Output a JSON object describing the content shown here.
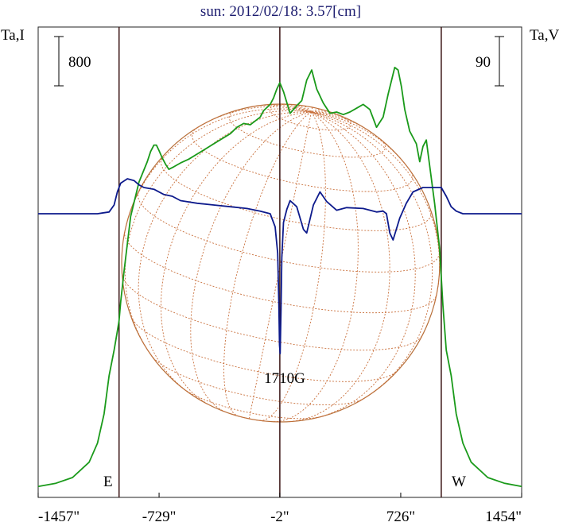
{
  "chart_data": {
    "type": "line",
    "title": "sun: 2012/02/18: 3.57[cm]",
    "left_axis_label": "Ta,I",
    "right_axis_label": "Ta,V",
    "left_scale_bar": "800",
    "right_scale_bar": "90",
    "annotation_peak": "1710G",
    "limb_label_east": "E",
    "limb_label_west": "W",
    "x_ticks": [
      {
        "value": -1457,
        "label": "-1457\""
      },
      {
        "value": -729,
        "label": "-729\""
      },
      {
        "value": -2,
        "label": "-2\""
      },
      {
        "value": 726,
        "label": "726\""
      },
      {
        "value": 1454,
        "label": "1454\""
      }
    ],
    "xlim": [
      -1457,
      1454
    ],
    "vertical_markers": [
      -970,
      -2,
      970
    ],
    "solar_disk": {
      "radius_arcsec": 970,
      "grid": true
    },
    "series": [
      {
        "key": "I",
        "color": "#1a9a1a",
        "x": [
          -1457,
          -1350,
          -1250,
          -1150,
          -1100,
          -1060,
          -1030,
          -1000,
          -980,
          -970,
          -960,
          -940,
          -900,
          -850,
          -800,
          -780,
          -760,
          -745,
          -730,
          -710,
          -690,
          -670,
          -640,
          -600,
          -550,
          -500,
          -450,
          -400,
          -350,
          -300,
          -260,
          -220,
          -180,
          -150,
          -120,
          -100,
          -60,
          -40,
          -20,
          -2,
          20,
          60,
          100,
          130,
          160,
          190,
          220,
          260,
          300,
          340,
          380,
          420,
          460,
          500,
          540,
          580,
          620,
          650,
          690,
          710,
          730,
          750,
          780,
          800,
          820,
          840,
          860,
          880,
          900,
          930,
          960,
          980,
          1000,
          1030,
          1060,
          1100,
          1150,
          1250,
          1350,
          1454
        ],
        "y": [
          30,
          55,
          100,
          220,
          370,
          600,
          900,
          1100,
          1250,
          1330,
          1480,
          1720,
          2150,
          2420,
          2580,
          2660,
          2710,
          2710,
          2670,
          2610,
          2560,
          2520,
          2540,
          2570,
          2600,
          2640,
          2680,
          2720,
          2760,
          2800,
          2850,
          2880,
          2870,
          2900,
          2930,
          2980,
          3030,
          3080,
          3150,
          3200,
          3130,
          2960,
          3020,
          3060,
          3220,
          3300,
          3150,
          3040,
          2960,
          2970,
          2950,
          2970,
          3000,
          3030,
          2990,
          2850,
          2930,
          3110,
          3320,
          3300,
          3170,
          2990,
          2820,
          2770,
          2720,
          2580,
          2700,
          2750,
          2550,
          2250,
          1900,
          1450,
          1100,
          900,
          600,
          370,
          220,
          100,
          55,
          30
        ]
      },
      {
        "key": "V",
        "color": "#0d1a8c",
        "x": [
          -1457,
          -1100,
          -1030,
          -1000,
          -980,
          -960,
          -920,
          -880,
          -850,
          -820,
          -760,
          -700,
          -650,
          -600,
          -500,
          -400,
          -300,
          -200,
          -120,
          -60,
          -30,
          -15,
          -8,
          -4,
          0,
          5,
          10,
          20,
          40,
          60,
          100,
          140,
          160,
          200,
          240,
          280,
          340,
          400,
          500,
          580,
          620,
          640,
          660,
          680,
          720,
          760,
          800,
          860,
          920,
          970,
          1000,
          1030,
          1060,
          1100,
          1454
        ],
        "y": [
          0,
          0,
          2,
          10,
          25,
          35,
          40,
          38,
          33,
          30,
          28,
          22,
          20,
          15,
          12,
          10,
          8,
          6,
          3,
          0,
          -15,
          -45,
          -100,
          -150,
          -160,
          -110,
          -50,
          -10,
          5,
          15,
          8,
          -18,
          -22,
          10,
          25,
          14,
          4,
          7,
          6,
          2,
          3,
          0,
          -22,
          -30,
          -5,
          12,
          25,
          30,
          30,
          30,
          20,
          8,
          3,
          0,
          0
        ]
      }
    ],
    "y_ranges": {
      "I": [
        0,
        3600
      ],
      "V": [
        -180,
        210
      ]
    }
  }
}
